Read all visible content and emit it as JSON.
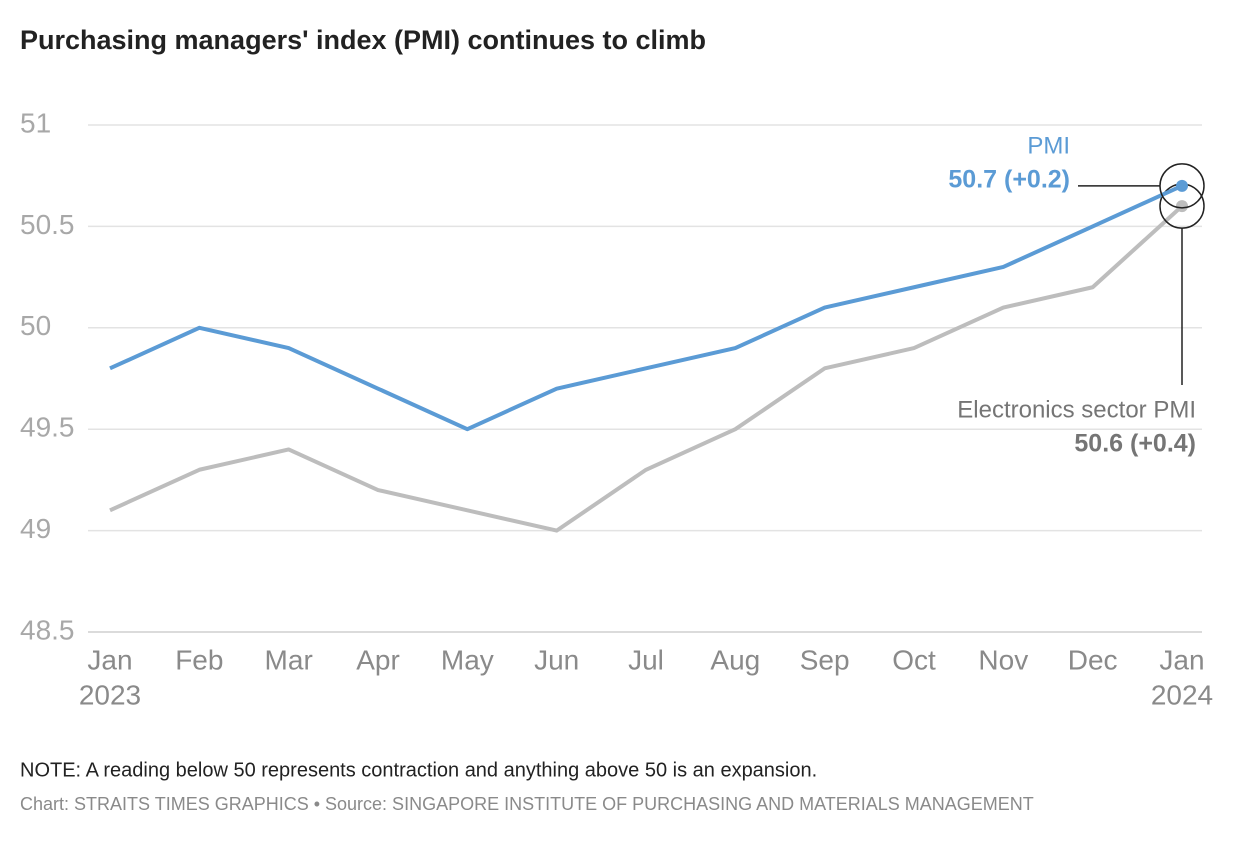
{
  "chart_data": {
    "type": "line",
    "title": "Purchasing managers' index (PMI) continues to climb",
    "categories": [
      "Jan",
      "Feb",
      "Mar",
      "Apr",
      "May",
      "Jun",
      "Jul",
      "Aug",
      "Sep",
      "Oct",
      "Nov",
      "Dec",
      "Jan"
    ],
    "year_labels": [
      "2023",
      "2024"
    ],
    "series": [
      {
        "name": "Electronics sector PMI",
        "color": "#bdbdbd",
        "label_color": "#757575",
        "annotation": "50.6 (+0.4)",
        "values": [
          49.1,
          49.3,
          49.4,
          49.2,
          49.1,
          49.0,
          49.3,
          49.5,
          49.8,
          49.9,
          50.1,
          50.2,
          50.6
        ]
      },
      {
        "name": "PMI",
        "color": "#5b9bd5",
        "label_color": "#5b9bd5",
        "annotation": "50.7 (+0.2)",
        "values": [
          49.8,
          50.0,
          49.9,
          49.7,
          49.5,
          49.7,
          49.8,
          49.9,
          50.1,
          50.2,
          50.3,
          50.5,
          50.7
        ]
      }
    ],
    "ylim": [
      48.5,
      51
    ],
    "yticks": [
      48.5,
      49,
      49.5,
      50,
      50.5,
      51
    ],
    "grid": true,
    "note": "NOTE: A reading below 50 represents contraction and anything above 50 is an expansion.",
    "source": "Chart: STRAITS TIMES GRAPHICS • Source: SINGAPORE INSTITUTE OF PURCHASING AND MATERIALS MANAGEMENT"
  }
}
